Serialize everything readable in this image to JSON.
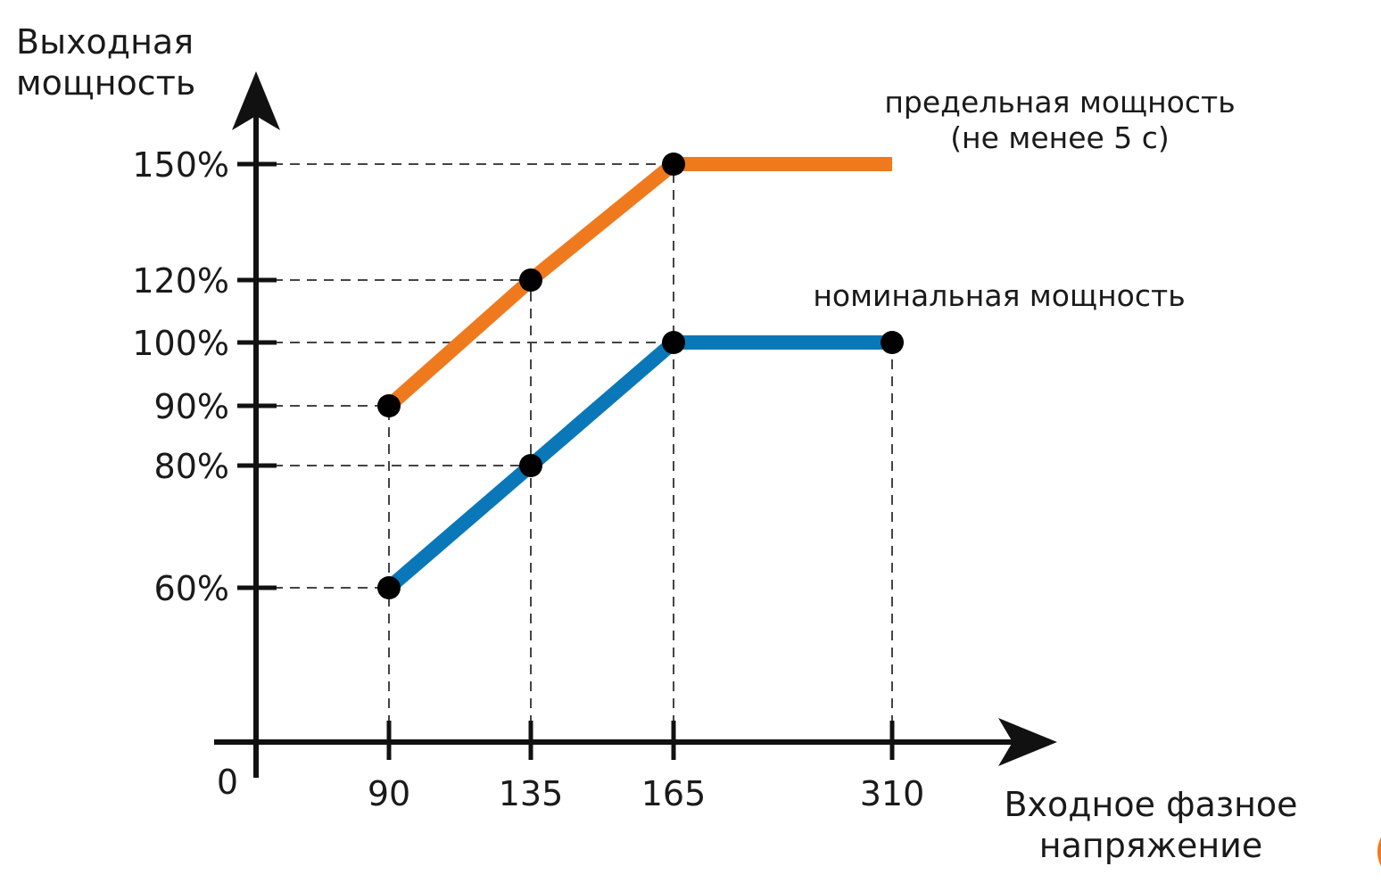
{
  "chart_data": {
    "type": "line",
    "xlabel": [
      "Входное фазное",
      "напряжение"
    ],
    "ylabel": [
      "Выходная",
      "мощность"
    ],
    "origin_label": "0",
    "x_ticks": [
      {
        "value": 90,
        "label": "90"
      },
      {
        "value": 135,
        "label": "135"
      },
      {
        "value": 165,
        "label": "165"
      },
      {
        "value": 310,
        "label": "310"
      }
    ],
    "y_ticks": [
      {
        "value": 60,
        "label": "60%"
      },
      {
        "value": 80,
        "label": "80%"
      },
      {
        "value": 90,
        "label": "90%"
      },
      {
        "value": 100,
        "label": "100%"
      },
      {
        "value": 120,
        "label": "120%"
      },
      {
        "value": 150,
        "label": "150%"
      }
    ],
    "series": [
      {
        "name": [
          "предельная мощность",
          "(не  менее 5 с)"
        ],
        "color": "#ef7a1e",
        "points": [
          [
            90,
            90
          ],
          [
            135,
            120
          ],
          [
            165,
            150
          ],
          [
            310,
            150
          ]
        ],
        "markers": [
          [
            90,
            90
          ],
          [
            135,
            120
          ],
          [
            165,
            150
          ]
        ]
      },
      {
        "name": [
          "номинальная мощность"
        ],
        "color": "#0a78b8",
        "points": [
          [
            90,
            60
          ],
          [
            135,
            80
          ],
          [
            165,
            100
          ],
          [
            310,
            100
          ]
        ],
        "markers": [
          [
            90,
            60
          ],
          [
            135,
            80
          ],
          [
            165,
            100
          ],
          [
            310,
            100
          ]
        ]
      }
    ],
    "grid": "dashed guide lines from axes to data points",
    "legend": "inline labels at right of lines"
  }
}
